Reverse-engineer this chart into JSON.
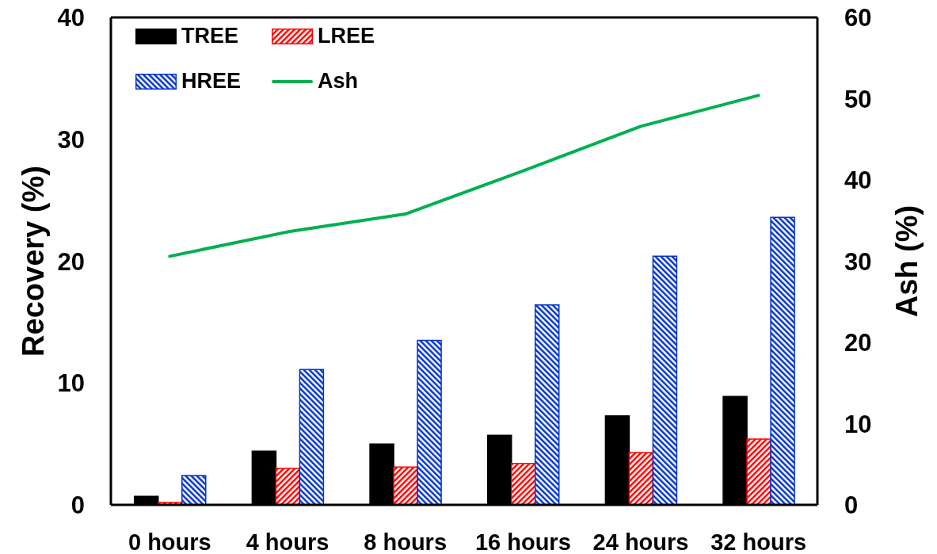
{
  "chart_data": {
    "type": "bar",
    "categories": [
      "0 hours",
      "4 hours",
      "8 hours",
      "16 hours",
      "24 hours",
      "32 hours"
    ],
    "series": [
      {
        "name": "TREE",
        "color": "#000000",
        "values": [
          0.7,
          4.4,
          5.0,
          5.7,
          7.3,
          8.9
        ]
      },
      {
        "name": "LREE",
        "color": "#ff0000",
        "values": [
          0.2,
          3.0,
          3.1,
          3.4,
          4.3,
          5.4
        ]
      },
      {
        "name": "HREE",
        "color": "#0033cc",
        "values": [
          2.4,
          11.1,
          13.5,
          16.4,
          20.4,
          23.6
        ]
      },
      {
        "name": "Ash",
        "type": "line",
        "axis": "y2",
        "color": "#00b050",
        "values": [
          30.6,
          33.6,
          35.8,
          41.1,
          46.6,
          50.4
        ]
      }
    ],
    "ylabel": "Recovery (%)",
    "y2label": "Ash (%)",
    "ylim": [
      0,
      40
    ],
    "yticks": [
      0,
      10,
      20,
      30,
      40
    ],
    "y2lim": [
      0,
      60
    ],
    "y2ticks": [
      0,
      10,
      20,
      30,
      40,
      50,
      60
    ],
    "legend": "top left"
  }
}
